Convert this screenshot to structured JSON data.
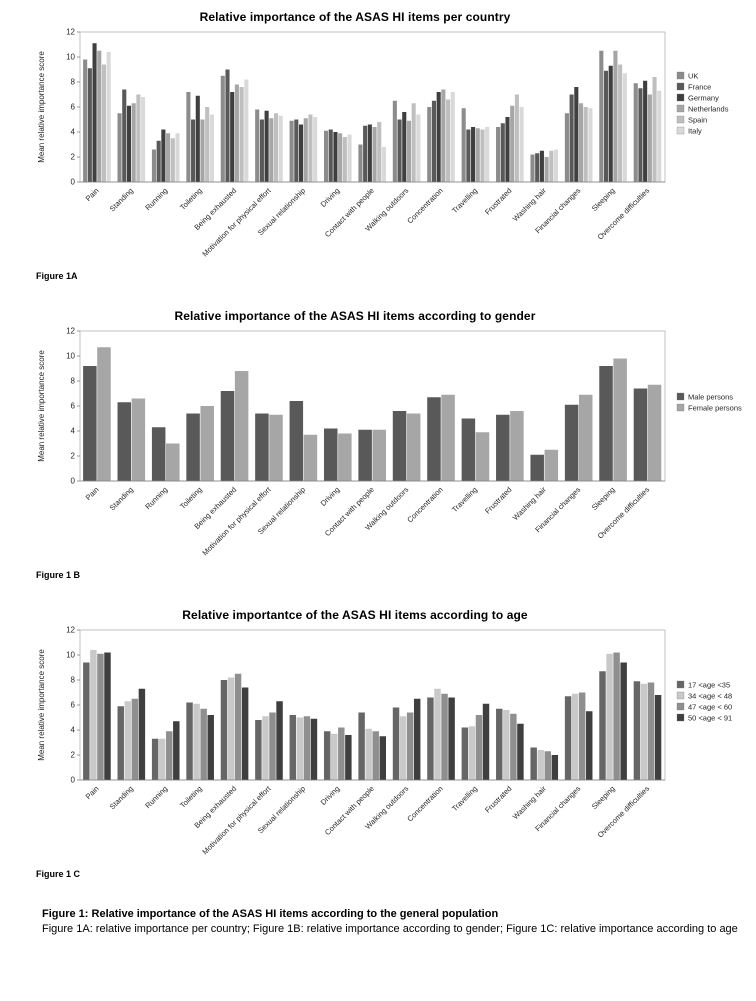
{
  "caption": {
    "line1": "Figure 1: Relative importance of the ASAS HI items according to the general population",
    "line2": "Figure 1A: relative importance per country; Figure 1B: relative importance according to gender; Figure 1C: relative importance according to age"
  },
  "chart_data": [
    {
      "type": "bar",
      "title": "Relative importance of  the ASAS HI items per country",
      "figure_label": "Figure 1A",
      "ylabel": "Mean relative importance score",
      "ylim": [
        0,
        12
      ],
      "yticks": [
        0,
        2,
        4,
        6,
        8,
        10,
        12
      ],
      "grid": false,
      "legend_position": "right",
      "categories": [
        "Pain",
        "Standing",
        "Running",
        "Toileting",
        "Being exhausted",
        "Motivation for physical effort",
        "Sexual relationship",
        "Driving",
        "Contact with people",
        "Walking outdoors",
        "Concentration",
        "Travelling",
        "Frustrated",
        "Washing hair",
        "Financial changes",
        "Sleeping",
        "Overcome difficulties"
      ],
      "series": [
        {
          "name": "UK",
          "color": "#8c8c8c",
          "values": [
            9.8,
            5.5,
            2.6,
            7.2,
            8.5,
            5.8,
            4.9,
            4.1,
            3.0,
            6.5,
            6.0,
            5.9,
            4.4,
            2.2,
            5.5,
            10.5,
            7.9
          ]
        },
        {
          "name": "France",
          "color": "#595959",
          "values": [
            9.1,
            7.4,
            3.3,
            5.0,
            9.0,
            5.0,
            5.0,
            4.2,
            4.5,
            5.0,
            6.5,
            4.2,
            4.7,
            2.3,
            7.0,
            8.9,
            7.5
          ]
        },
        {
          "name": "Germany",
          "color": "#3f3f3f",
          "values": [
            11.1,
            6.1,
            4.2,
            6.9,
            7.2,
            5.7,
            4.6,
            4.0,
            4.6,
            5.6,
            7.2,
            4.4,
            5.2,
            2.5,
            7.6,
            9.3,
            8.1
          ]
        },
        {
          "name": "Netherlands",
          "color": "#a6a6a6",
          "values": [
            10.5,
            6.3,
            3.9,
            5.0,
            7.8,
            5.1,
            5.1,
            3.9,
            4.4,
            4.9,
            7.4,
            4.3,
            6.1,
            2.0,
            6.3,
            10.5,
            7.0
          ]
        },
        {
          "name": "Spain",
          "color": "#bfbfbf",
          "values": [
            9.4,
            7.0,
            3.5,
            6.0,
            7.6,
            5.5,
            5.4,
            3.6,
            4.8,
            6.3,
            6.6,
            4.2,
            7.0,
            2.5,
            6.0,
            9.4,
            8.4
          ]
        },
        {
          "name": "Italy",
          "color": "#d9d9d9",
          "values": [
            10.4,
            6.8,
            3.9,
            5.4,
            8.2,
            5.3,
            5.2,
            3.8,
            2.8,
            5.4,
            7.2,
            4.4,
            6.0,
            2.6,
            5.9,
            8.7,
            7.3
          ]
        }
      ]
    },
    {
      "type": "bar",
      "title": "Relative importance of the ASAS HI items according to gender",
      "figure_label": "Figure 1 B",
      "ylabel": "Mean relative importance score",
      "ylim": [
        0,
        12
      ],
      "yticks": [
        0,
        2,
        4,
        6,
        8,
        10,
        12
      ],
      "grid": false,
      "legend_position": "right",
      "categories": [
        "Pain",
        "Standing",
        "Running",
        "Toileting",
        "Being exhausted",
        "Motivation for physical effort",
        "Sexual relationship",
        "Driving",
        "Contact with people",
        "Walking outdoors",
        "Concentration",
        "Travelling",
        "Frustrated",
        "Washing hair",
        "Financial changes",
        "Sleeping",
        "Overcome difficulties"
      ],
      "series": [
        {
          "name": "Male persons",
          "color": "#595959",
          "values": [
            9.2,
            6.3,
            4.3,
            5.4,
            7.2,
            5.4,
            6.4,
            4.2,
            4.1,
            5.6,
            6.7,
            5.0,
            5.3,
            2.1,
            6.1,
            9.2,
            7.4
          ]
        },
        {
          "name": "Female persons",
          "color": "#a6a6a6",
          "values": [
            10.7,
            6.6,
            3.0,
            6.0,
            8.8,
            5.3,
            3.7,
            3.8,
            4.1,
            5.4,
            6.9,
            3.9,
            5.6,
            2.5,
            6.9,
            9.8,
            7.7
          ]
        }
      ]
    },
    {
      "type": "bar",
      "title": "Relative importantce of the ASAS HI items according to age",
      "figure_label": "Figure 1 C",
      "ylabel": "Mean relative importance score",
      "ylim": [
        0,
        12
      ],
      "yticks": [
        0,
        2,
        4,
        6,
        8,
        10,
        12
      ],
      "grid": false,
      "legend_position": "right",
      "categories": [
        "Pain",
        "Standing",
        "Running",
        "Toileting",
        "Being exhausted",
        "Motivation for physical effort",
        "Sexual relationship",
        "Driving",
        "Contact with people",
        "Walking outdoors",
        "Concentration",
        "Travelling",
        "Frustrated",
        "Washing hair",
        "Financial changes",
        "Sleeping",
        "Overcome difficulties"
      ],
      "series": [
        {
          "name": "17 <age <35",
          "color": "#666666",
          "values": [
            9.4,
            5.9,
            3.3,
            6.2,
            8.0,
            4.8,
            5.2,
            3.9,
            5.4,
            5.8,
            6.6,
            4.2,
            5.7,
            2.6,
            6.7,
            8.7,
            7.9
          ]
        },
        {
          "name": "34 <age < 48",
          "color": "#c9c9c9",
          "values": [
            10.4,
            6.3,
            3.3,
            6.1,
            8.2,
            5.1,
            5.0,
            3.7,
            4.1,
            5.1,
            7.3,
            4.3,
            5.6,
            2.4,
            6.9,
            10.1,
            7.7
          ]
        },
        {
          "name": "47 <age < 60",
          "color": "#8f8f8f",
          "values": [
            10.1,
            6.5,
            3.9,
            5.7,
            8.5,
            5.4,
            5.1,
            4.2,
            3.9,
            5.4,
            6.9,
            5.2,
            5.3,
            2.3,
            7.0,
            10.2,
            7.8
          ]
        },
        {
          "name": "50 <age < 91",
          "color": "#3f3f3f",
          "values": [
            10.2,
            7.3,
            4.7,
            5.2,
            7.4,
            6.3,
            4.9,
            3.6,
            3.5,
            6.5,
            6.6,
            6.1,
            4.5,
            2.0,
            5.5,
            9.4,
            6.8
          ]
        }
      ]
    }
  ]
}
